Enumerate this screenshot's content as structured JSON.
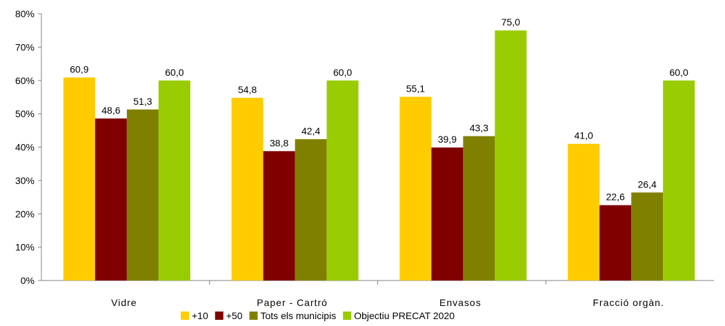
{
  "chart_data": {
    "type": "bar",
    "categories": [
      "Vidre",
      "Paper - Cartró",
      "Envasos",
      "Fracció orgàn."
    ],
    "series": [
      {
        "name": "+10",
        "color": "#FFCC00",
        "values": [
          60.9,
          54.8,
          55.1,
          41.0
        ],
        "labels": [
          "60,9",
          "54,8",
          "55,1",
          "41,0"
        ]
      },
      {
        "name": "+50",
        "color": "#800000",
        "values": [
          48.6,
          38.8,
          39.9,
          22.6
        ],
        "labels": [
          "48,6",
          "38,8",
          "39,9",
          "22,6"
        ]
      },
      {
        "name": "Tots els municipis",
        "color": "#808000",
        "values": [
          51.3,
          42.4,
          43.3,
          26.4
        ],
        "labels": [
          "51,3",
          "42,4",
          "43,3",
          "26,4"
        ]
      },
      {
        "name": "Objectiu PRECAT 2020",
        "color": "#99CC00",
        "values": [
          60.0,
          60.0,
          75.0,
          60.0
        ],
        "labels": [
          "60,0",
          "60,0",
          "75,0",
          "60,0"
        ]
      }
    ],
    "ylim": [
      0,
      80
    ],
    "yticks": [
      "0%",
      "10%",
      "20%",
      "30%",
      "40%",
      "50%",
      "60%",
      "70%",
      "80%"
    ],
    "grid": false,
    "legend": "bottom"
  }
}
